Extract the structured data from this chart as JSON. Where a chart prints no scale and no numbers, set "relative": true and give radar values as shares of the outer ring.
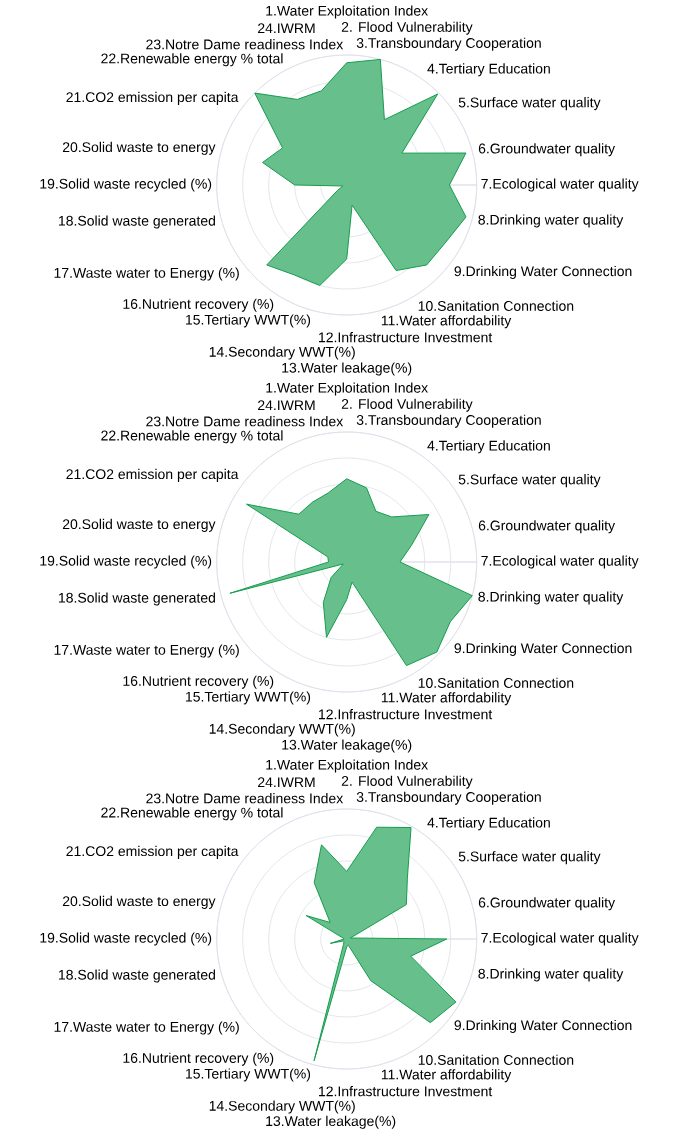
{
  "chart_data": [
    {
      "type": "radar",
      "relative": true,
      "grid": true,
      "categories": [
        "1.Water Exploitation Index",
        "2. Flood Vulnerability",
        "3.Transboundary Cooperation",
        "4.Tertiary Education",
        "5.Surface water quality",
        "6.Groundwater quality",
        "7.Ecological water quality",
        "8.Drinking water quality",
        "9.Drinking Water Connection",
        "10.Sanitation Connection",
        "11.Water affordability",
        "12.Infrastructure Investment",
        "13.Water leakage(%)",
        "14.Secondary WWT(%)",
        "15.Tertiary WWT(%)",
        "16.Nutrient recovery (%)",
        "17.Waste water to Energy (%)",
        "18.Solid waste generated",
        "19.Solid waste recycled (%)",
        "20.Solid waste to energy",
        "21.CO2 emission per capita",
        "22.Renewable energy % total",
        "23.Notre Dame readiness Index",
        "24.IWRM"
      ],
      "series": [
        {
          "color": "#67bf8b",
          "values": [
            0.94,
            1.0,
            0.58,
            0.99,
            0.49,
            0.95,
            0.79,
            0.95,
            0.88,
            0.87,
            0.76,
            0.16,
            0.57,
            0.8,
            0.8,
            0.87,
            0.08,
            0.03,
            0.4,
            0.67,
            0.57,
            1.0,
            0.76,
            0.75
          ]
        }
      ]
    },
    {
      "type": "radar",
      "relative": true,
      "grid": true,
      "categories": [
        "1.Water Exploitation Index",
        "2. Flood Vulnerability",
        "3.Transboundary Cooperation",
        "4.Tertiary Education",
        "5.Surface water quality",
        "6.Groundwater quality",
        "7.Ecological water quality",
        "8.Drinking water quality",
        "9.Drinking Water Connection",
        "10.Sanitation Connection",
        "11.Water affordability",
        "12.Infrastructure Investment",
        "13.Water leakage(%)",
        "14.Secondary WWT(%)",
        "15.Tertiary WWT(%)",
        "16.Nutrient recovery (%)",
        "17.Waste water to Energy (%)",
        "18.Solid waste generated",
        "19.Solid waste recycled (%)",
        "20.Solid waste to energy",
        "21.CO2 emission per capita",
        "22.Renewable energy % total",
        "23.Notre Dame readiness Index",
        "24.IWRM"
      ],
      "series": [
        {
          "color": "#67bf8b",
          "values": [
            0.64,
            0.59,
            0.45,
            0.49,
            0.73,
            0.52,
            0.41,
            1.0,
            0.92,
            0.98,
            0.92,
            0.16,
            0.29,
            0.6,
            0.36,
            0.17,
            0.03,
            0.93,
            0.14,
            0.15,
            0.89,
            0.52,
            0.53,
            0.55
          ]
        }
      ]
    },
    {
      "type": "radar",
      "relative": true,
      "grid": true,
      "categories": [
        "1.Water Exploitation Index",
        "2. Flood Vulnerability",
        "3.Transboundary Cooperation",
        "4.Tertiary Education",
        "5.Surface water quality",
        "6.Groundwater quality",
        "7.Ecological water quality",
        "8.Drinking water quality",
        "9.Drinking Water Connection",
        "10.Sanitation Connection",
        "11.Water affordability",
        "12.Infrastructure Investment",
        "13.Water leakage(%)",
        "14.Secondary WWT(%)",
        "15.Tertiary WWT(%)",
        "16.Nutrient recovery (%)",
        "17.Waste water to Energy (%)",
        "18.Solid waste generated",
        "19.Solid waste recycled (%)",
        "20.Solid waste to energy",
        "21.CO2 emission per capita",
        "22.Renewable energy % total",
        "23.Notre Dame readiness Index",
        "24.IWRM"
      ],
      "series": [
        {
          "color": "#67bf8b",
          "values": [
            0.52,
            0.89,
            0.99,
            0.66,
            0.53,
            0.03,
            0.77,
            0.51,
            0.97,
            0.91,
            0.37,
            0.05,
            0.06,
            0.97,
            0.05,
            0.03,
            0.03,
            0.13,
            0.02,
            0.03,
            0.36,
            0.18,
            0.5,
            0.75
          ]
        }
      ]
    }
  ]
}
